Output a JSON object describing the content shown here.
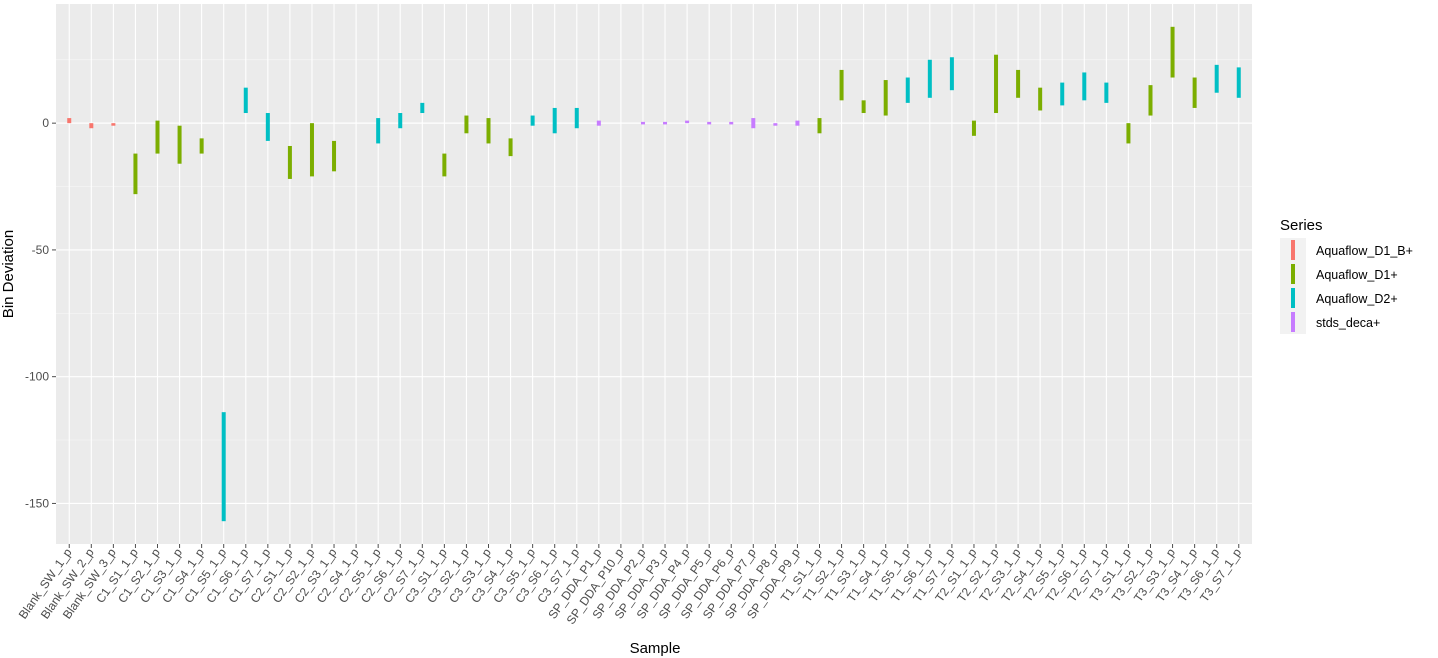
{
  "chart_data": {
    "type": "bar",
    "title": "",
    "xlabel": "Sample",
    "ylabel": "Bin Deviation",
    "ylim": [
      -166,
      47
    ],
    "yticks": [
      0,
      -50,
      -100,
      -150
    ],
    "grid": true,
    "legend_title": "Series",
    "legend_position": "right",
    "series": [
      {
        "name": "Aquaflow_D1_B+",
        "color": "#F8766D"
      },
      {
        "name": "Aquaflow_D1+",
        "color": "#7CAE00"
      },
      {
        "name": "Aquaflow_D2+",
        "color": "#00BFC4"
      },
      {
        "name": "stds_deca+",
        "color": "#C77CFF"
      }
    ],
    "categories": [
      "Blank_SW_1_p",
      "Blank_SW_2_p",
      "Blank_SW_3_p",
      "C1_S1_1_p",
      "C1_S2_1_p",
      "C1_S3_1_p",
      "C1_S4_1_p",
      "C1_S5_1_p",
      "C1_S6_1_p",
      "C1_S7_1_p",
      "C2_S1_1_p",
      "C2_S2_1_p",
      "C2_S3_1_p",
      "C2_S4_1_p",
      "C2_S5_1_p",
      "C2_S6_1_p",
      "C2_S7_1_p",
      "C3_S1_1_p",
      "C3_S2_1_p",
      "C3_S3_1_p",
      "C3_S4_1_p",
      "C3_S5_1_p",
      "C3_S6_1_p",
      "C3_S7_1_p",
      "SP_DDA_P1_p",
      "SP_DDA_P10_p",
      "SP_DDA_P2_p",
      "SP_DDA_P3_p",
      "SP_DDA_P4_p",
      "SP_DDA_P5_p",
      "SP_DDA_P6_p",
      "SP_DDA_P7_p",
      "SP_DDA_P8_p",
      "SP_DDA_P9_p",
      "T1_S1_1_p",
      "T1_S2_1_p",
      "T1_S3_1_p",
      "T1_S4_1_p",
      "T1_S5_1_p",
      "T1_S6_1_p",
      "T1_S7_1_p",
      "T2_S1_1_p",
      "T2_S2_1_p",
      "T2_S3_1_p",
      "T2_S4_1_p",
      "T2_S5_1_p",
      "T2_S6_1_p",
      "T2_S7_1_p",
      "T3_S1_1_p",
      "T3_S2_1_p",
      "T3_S3_1_p",
      "T3_S4_1_p",
      "T3_S6_1_p",
      "T3_S7_1_p"
    ],
    "bars": [
      {
        "category": "Blank_SW_1_p",
        "series": 0,
        "min": 0,
        "max": 2
      },
      {
        "category": "Blank_SW_2_p",
        "series": 0,
        "min": -2,
        "max": 0
      },
      {
        "category": "Blank_SW_3_p",
        "series": 0,
        "min": -1,
        "max": 0
      },
      {
        "category": "C1_S1_1_p",
        "series": 1,
        "min": -28,
        "max": -12
      },
      {
        "category": "C1_S2_1_p",
        "series": 1,
        "min": -12,
        "max": 1
      },
      {
        "category": "C1_S3_1_p",
        "series": 1,
        "min": -16,
        "max": -1
      },
      {
        "category": "C1_S4_1_p",
        "series": 1,
        "min": -12,
        "max": -6
      },
      {
        "category": "C1_S5_1_p",
        "series": 2,
        "min": -157,
        "max": -114
      },
      {
        "category": "C1_S6_1_p",
        "series": 2,
        "min": 4,
        "max": 14
      },
      {
        "category": "C1_S7_1_p",
        "series": 2,
        "min": -7,
        "max": 4
      },
      {
        "category": "C2_S1_1_p",
        "series": 1,
        "min": -22,
        "max": -9
      },
      {
        "category": "C2_S2_1_p",
        "series": 1,
        "min": -21,
        "max": 0
      },
      {
        "category": "C2_S3_1_p",
        "series": 1,
        "min": -19,
        "max": -7
      },
      {
        "category": "C2_S5_1_p",
        "series": 2,
        "min": -8,
        "max": 2
      },
      {
        "category": "C2_S6_1_p",
        "series": 2,
        "min": -2,
        "max": 4
      },
      {
        "category": "C2_S7_1_p",
        "series": 2,
        "min": 4,
        "max": 8
      },
      {
        "category": "C3_S1_1_p",
        "series": 1,
        "min": -21,
        "max": -12
      },
      {
        "category": "C3_S2_1_p",
        "series": 1,
        "min": -4,
        "max": 3
      },
      {
        "category": "C3_S3_1_p",
        "series": 1,
        "min": -8,
        "max": 2
      },
      {
        "category": "C3_S4_1_p",
        "series": 1,
        "min": -13,
        "max": -6
      },
      {
        "category": "C3_S5_1_p",
        "series": 2,
        "min": -1,
        "max": 3
      },
      {
        "category": "C3_S6_1_p",
        "series": 2,
        "min": -4,
        "max": 6
      },
      {
        "category": "C3_S7_1_p",
        "series": 2,
        "min": -2,
        "max": 6
      },
      {
        "category": "SP_DDA_P1_p",
        "series": 3,
        "min": -1,
        "max": 1
      },
      {
        "category": "SP_DDA_P2_p",
        "series": 3,
        "min": -0.5,
        "max": 0.5
      },
      {
        "category": "SP_DDA_P3_p",
        "series": 3,
        "min": -0.5,
        "max": 0.5
      },
      {
        "category": "SP_DDA_P4_p",
        "series": 3,
        "min": 0,
        "max": 1
      },
      {
        "category": "SP_DDA_P5_p",
        "series": 3,
        "min": -0.5,
        "max": 0.5
      },
      {
        "category": "SP_DDA_P6_p",
        "series": 3,
        "min": -0.5,
        "max": 0.5
      },
      {
        "category": "SP_DDA_P7_p",
        "series": 3,
        "min": -2,
        "max": 2
      },
      {
        "category": "SP_DDA_P8_p",
        "series": 3,
        "min": -1,
        "max": 0
      },
      {
        "category": "SP_DDA_P9_p",
        "series": 3,
        "min": -1,
        "max": 1
      },
      {
        "category": "T1_S1_1_p",
        "series": 1,
        "min": -4,
        "max": 2
      },
      {
        "category": "T1_S2_1_p",
        "series": 1,
        "min": 9,
        "max": 21
      },
      {
        "category": "T1_S3_1_p",
        "series": 1,
        "min": 4,
        "max": 9
      },
      {
        "category": "T1_S4_1_p",
        "series": 1,
        "min": 3,
        "max": 17
      },
      {
        "category": "T1_S5_1_p",
        "series": 2,
        "min": 8,
        "max": 18
      },
      {
        "category": "T1_S6_1_p",
        "series": 2,
        "min": 10,
        "max": 25
      },
      {
        "category": "T1_S7_1_p",
        "series": 2,
        "min": 13,
        "max": 26
      },
      {
        "category": "T2_S1_1_p",
        "series": 1,
        "min": -5,
        "max": 1
      },
      {
        "category": "T2_S2_1_p",
        "series": 1,
        "min": 4,
        "max": 27
      },
      {
        "category": "T2_S3_1_p",
        "series": 1,
        "min": 10,
        "max": 21
      },
      {
        "category": "T2_S4_1_p",
        "series": 1,
        "min": 5,
        "max": 14
      },
      {
        "category": "T2_S5_1_p",
        "series": 2,
        "min": 7,
        "max": 16
      },
      {
        "category": "T2_S6_1_p",
        "series": 2,
        "min": 9,
        "max": 20
      },
      {
        "category": "T2_S7_1_p",
        "series": 2,
        "min": 8,
        "max": 16
      },
      {
        "category": "T3_S1_1_p",
        "series": 1,
        "min": -8,
        "max": 0
      },
      {
        "category": "T3_S2_1_p",
        "series": 1,
        "min": 3,
        "max": 15
      },
      {
        "category": "T3_S3_1_p",
        "series": 1,
        "min": 18,
        "max": 38
      },
      {
        "category": "T3_S4_1_p",
        "series": 1,
        "min": 6,
        "max": 18
      },
      {
        "category": "T3_S6_1_p",
        "series": 2,
        "min": 12,
        "max": 23
      },
      {
        "category": "T3_S7_1_p",
        "series": 2,
        "min": 10,
        "max": 22
      }
    ]
  }
}
